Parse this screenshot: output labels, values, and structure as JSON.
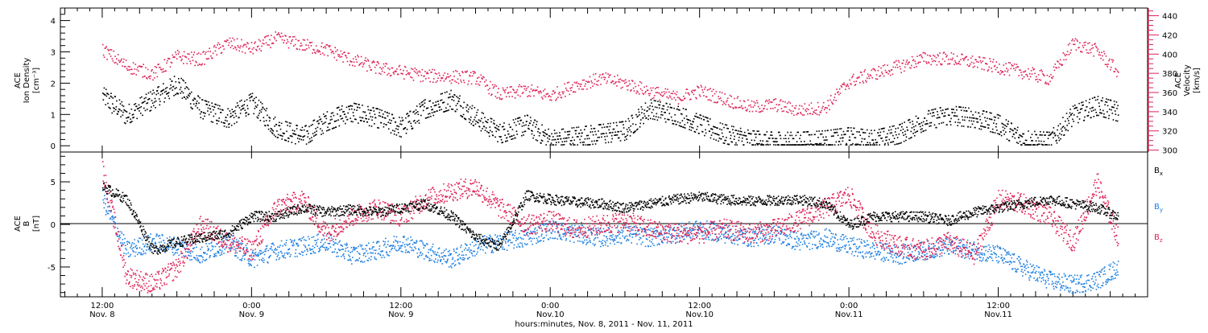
{
  "chart_data": [
    {
      "type": "scatter",
      "panel": "top",
      "left_axis_label_lines": [
        "ACE",
        "Ion Density",
        "[cm⁻³]"
      ],
      "right_axis_label_lines": [
        "ACE",
        "Velocity",
        "[km/s]"
      ],
      "left_ylim": [
        -0.2,
        4.4
      ],
      "right_ylim": [
        298,
        448
      ],
      "left_ticks": [
        0,
        1,
        2,
        3,
        4
      ],
      "right_ticks": [
        300,
        320,
        340,
        360,
        380,
        400,
        420,
        440
      ],
      "right_tick_labels": [
        "300",
        "320",
        "340",
        "360",
        "380",
        "400",
        "420",
        "440"
      ],
      "series": [
        {
          "axis": "left",
          "color": "#000000",
          "x": [
            0.0,
            0.08,
            0.17,
            0.25,
            0.33,
            0.42,
            0.5,
            0.58,
            0.67,
            0.75,
            0.83,
            0.92,
            1.0,
            1.08,
            1.17,
            1.25,
            1.33,
            1.42,
            1.5,
            1.58,
            1.67,
            1.75,
            1.83,
            1.92,
            2.0,
            2.08,
            2.17,
            2.25,
            2.33,
            2.42,
            2.5,
            2.58,
            2.67,
            2.75,
            2.83,
            2.92,
            3.0,
            3.08,
            3.17,
            3.25,
            3.33,
            3.4
          ],
          "y": [
            1.6,
            1.0,
            1.5,
            2.0,
            1.2,
            0.9,
            1.4,
            0.6,
            0.3,
            0.8,
            1.1,
            0.9,
            0.6,
            1.2,
            1.5,
            0.9,
            0.4,
            0.7,
            0.2,
            0.3,
            0.4,
            0.5,
            1.2,
            1.0,
            0.7,
            0.4,
            0.2,
            0.15,
            0.15,
            0.2,
            0.3,
            0.2,
            0.4,
            0.8,
            1.0,
            0.9,
            0.7,
            0.2,
            0.15,
            1.0,
            1.3,
            1.1
          ]
        },
        {
          "axis": "right",
          "color": "#dd2255",
          "x": [
            0.0,
            0.08,
            0.17,
            0.25,
            0.33,
            0.42,
            0.5,
            0.58,
            0.67,
            0.75,
            0.83,
            0.92,
            1.0,
            1.08,
            1.17,
            1.25,
            1.33,
            1.42,
            1.5,
            1.58,
            1.67,
            1.75,
            1.83,
            1.92,
            2.0,
            2.08,
            2.17,
            2.25,
            2.33,
            2.42,
            2.5,
            2.58,
            2.67,
            2.75,
            2.83,
            2.92,
            3.0,
            3.08,
            3.17,
            3.25,
            3.33,
            3.4
          ],
          "y": [
            405,
            388,
            380,
            398,
            395,
            412,
            406,
            417,
            410,
            405,
            395,
            386,
            382,
            378,
            377,
            376,
            358,
            363,
            357,
            368,
            375,
            370,
            362,
            355,
            362,
            354,
            345,
            348,
            342,
            345,
            372,
            380,
            388,
            396,
            396,
            392,
            387,
            382,
            375,
            412,
            404,
            382
          ]
        }
      ]
    },
    {
      "type": "scatter",
      "panel": "bottom",
      "left_axis_label_lines": [
        "ACE",
        "B",
        "[nT]"
      ],
      "ylim": [
        -8.5,
        8.5
      ],
      "ticks": [
        -5,
        0,
        5
      ],
      "series": [
        {
          "name": "Bx",
          "color": "#000000",
          "x": [
            0.0,
            0.08,
            0.17,
            0.25,
            0.33,
            0.42,
            0.5,
            0.58,
            0.67,
            0.75,
            0.83,
            0.92,
            1.0,
            1.08,
            1.17,
            1.25,
            1.33,
            1.42,
            1.5,
            1.58,
            1.67,
            1.75,
            1.83,
            1.92,
            2.0,
            2.08,
            2.17,
            2.25,
            2.33,
            2.42,
            2.5,
            2.58,
            2.67,
            2.75,
            2.83,
            2.92,
            3.0,
            3.08,
            3.17,
            3.25,
            3.33,
            3.4
          ],
          "y": [
            4.5,
            3.0,
            -3.0,
            -2.0,
            -1.5,
            -1.0,
            1.0,
            1.0,
            2.0,
            1.5,
            1.8,
            1.5,
            2.0,
            2.5,
            1.0,
            -1.5,
            -2.5,
            3.5,
            3.0,
            2.7,
            2.5,
            2.0,
            2.5,
            3.0,
            3.3,
            3.0,
            2.8,
            2.9,
            3.0,
            2.5,
            0.0,
            1.0,
            1.0,
            1.0,
            0.5,
            1.5,
            2.0,
            2.5,
            3.0,
            2.5,
            2.0,
            1.0
          ]
        },
        {
          "name": "By",
          "color": "#1e7fe0",
          "x": [
            0.0,
            0.08,
            0.17,
            0.25,
            0.33,
            0.42,
            0.5,
            0.58,
            0.67,
            0.75,
            0.83,
            0.92,
            1.0,
            1.08,
            1.17,
            1.25,
            1.33,
            1.42,
            1.5,
            1.58,
            1.67,
            1.75,
            1.83,
            1.92,
            2.0,
            2.08,
            2.17,
            2.25,
            2.33,
            2.42,
            2.5,
            2.58,
            2.67,
            2.75,
            2.83,
            2.92,
            3.0,
            3.08,
            3.17,
            3.25,
            3.33,
            3.4
          ],
          "y": [
            3.0,
            -3.0,
            -2.0,
            -2.5,
            -3.5,
            -2.0,
            -4.0,
            -3.0,
            -2.5,
            -2.0,
            -3.5,
            -3.0,
            -2.0,
            -3.0,
            -4.0,
            -2.5,
            -2.0,
            -1.5,
            -0.5,
            -1.0,
            -1.5,
            -1.0,
            -1.5,
            -1.0,
            -0.5,
            -1.0,
            -1.5,
            -1.0,
            -2.0,
            -1.5,
            -2.5,
            -3.0,
            -3.5,
            -3.0,
            -2.5,
            -3.0,
            -3.5,
            -5.0,
            -6.5,
            -7.0,
            -6.5,
            -5.0
          ]
        },
        {
          "name": "Bz",
          "color": "#dd2255",
          "x": [
            0.0,
            0.08,
            0.17,
            0.25,
            0.33,
            0.42,
            0.5,
            0.58,
            0.67,
            0.75,
            0.83,
            0.92,
            1.0,
            1.08,
            1.17,
            1.25,
            1.33,
            1.42,
            1.5,
            1.58,
            1.67,
            1.75,
            1.83,
            1.92,
            2.0,
            2.08,
            2.17,
            2.25,
            2.33,
            2.42,
            2.5,
            2.58,
            2.67,
            2.75,
            2.83,
            2.92,
            3.0,
            3.08,
            3.17,
            3.25,
            3.33,
            3.4
          ],
          "y": [
            6.5,
            -6.0,
            -7.0,
            -5.0,
            0.0,
            -2.0,
            -3.0,
            2.0,
            3.0,
            -1.0,
            1.0,
            2.0,
            1.0,
            3.0,
            4.0,
            4.5,
            2.0,
            0.0,
            0.5,
            -0.5,
            0.0,
            0.5,
            -0.5,
            -1.0,
            -1.0,
            -0.5,
            -1.0,
            -0.5,
            0.5,
            2.0,
            3.5,
            -1.0,
            -2.5,
            -3.0,
            -2.0,
            -3.5,
            3.0,
            2.5,
            1.0,
            -2.0,
            5.0,
            -1.5
          ]
        }
      ],
      "legend": {
        "placement": "right",
        "entries": [
          {
            "text": "B",
            "sub": "x",
            "color": "#000000"
          },
          {
            "text": "B",
            "sub": "y",
            "color": "#1e7fe0"
          },
          {
            "text": "B",
            "sub": "z",
            "color": "#dd2255"
          }
        ]
      }
    }
  ],
  "x_axis": {
    "xlim": [
      -0.14,
      3.5
    ],
    "tick_labels": [
      {
        "x": 0.0,
        "line1": "12:00",
        "line2": "Nov. 8"
      },
      {
        "x": 0.5,
        "line1": "0:00",
        "line2": "Nov. 9"
      },
      {
        "x": 1.0,
        "line1": "12:00",
        "line2": "Nov. 9"
      },
      {
        "x": 1.5,
        "line1": "0:00",
        "line2": "Nov.10"
      },
      {
        "x": 2.0,
        "line1": "12:00",
        "line2": "Nov.10"
      },
      {
        "x": 2.5,
        "line1": "0:00",
        "line2": "Nov.11"
      },
      {
        "x": 3.0,
        "line1": "12:00",
        "line2": "Nov.11"
      }
    ],
    "title": "hours:minutes, Nov. 8, 2011 - Nov. 11, 2011"
  }
}
